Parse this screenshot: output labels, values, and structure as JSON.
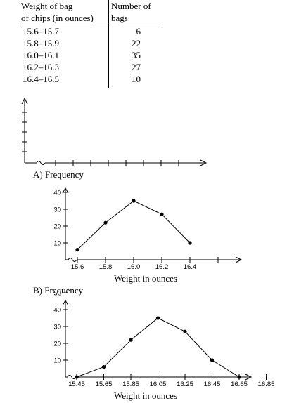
{
  "table": {
    "col1_header": [
      "Weight of bag",
      "of chips (in ounces)"
    ],
    "col2_header": [
      "Number of",
      "bags"
    ],
    "rows": [
      {
        "weight": "15.6–15.7",
        "count": "6"
      },
      {
        "weight": "15.8–15.9",
        "count": "22"
      },
      {
        "weight": "16.0–16.1",
        "count": "35"
      },
      {
        "weight": "16.2–16.3",
        "count": "27"
      },
      {
        "weight": "16.4–16.5",
        "count": "10"
      }
    ]
  },
  "chart_data": [
    {
      "type": "line",
      "option_label": "A)",
      "ylabel": "Frequency",
      "xlabel": "Weight in ounces",
      "x": [
        15.6,
        15.8,
        16.0,
        16.2,
        16.4
      ],
      "y": [
        6,
        22,
        35,
        27,
        10
      ],
      "x_ticks": [
        "15.6",
        "15.8",
        "16.0",
        "16.2",
        "16.4"
      ],
      "y_ticks": [
        "40",
        "30",
        "20",
        "10"
      ],
      "ylim": [
        0,
        40
      ]
    },
    {
      "type": "line",
      "option_label": "B)",
      "ylabel": "Frequency",
      "xlabel": "Weight in ounces",
      "x": [
        15.45,
        15.65,
        15.85,
        16.05,
        16.25,
        16.45,
        16.65
      ],
      "y": [
        0,
        6,
        22,
        35,
        27,
        10,
        0
      ],
      "x_ticks": [
        "15.45",
        "15.65",
        "15.85",
        "16.05",
        "16.25",
        "16.45",
        "16.65",
        "16.85"
      ],
      "y_ticks": [
        "50",
        "40",
        "30",
        "20",
        "10"
      ],
      "ylim": [
        0,
        50
      ]
    }
  ]
}
